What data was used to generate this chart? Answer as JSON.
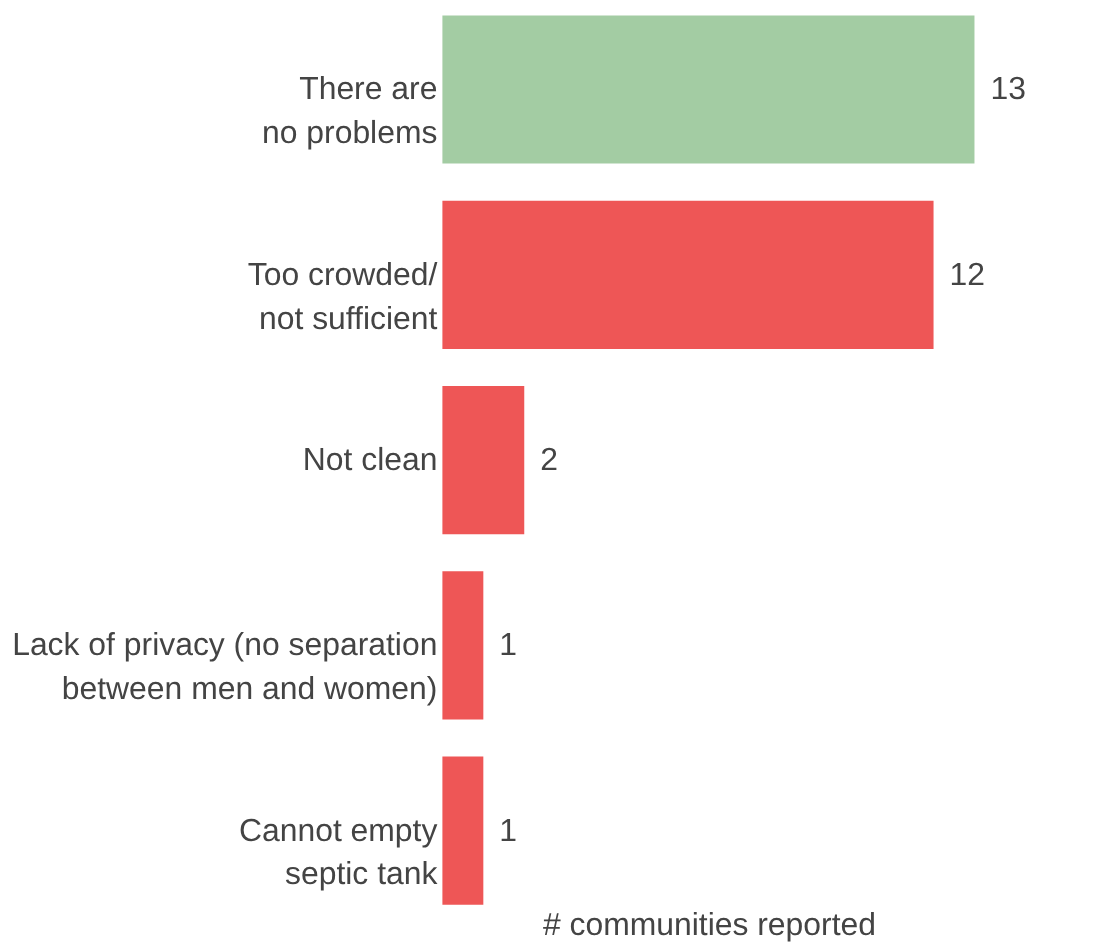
{
  "chart_data": {
    "type": "bar",
    "orientation": "horizontal",
    "xlabel": "# communities reported",
    "categories": [
      "There are\nno problems",
      "Too crowded/\nnot sufficient",
      "Not clean",
      "Lack of privacy (no separation\nbetween men and women)",
      "Cannot empty\nseptic tank"
    ],
    "values": [
      13,
      12,
      2,
      1,
      1
    ],
    "colors": [
      "#a3cca3",
      "#ee5656",
      "#ee5656",
      "#ee5656",
      "#ee5656"
    ],
    "xlim": [
      0,
      13
    ],
    "data_labels": true,
    "grid": false,
    "tick_labels": "y"
  }
}
